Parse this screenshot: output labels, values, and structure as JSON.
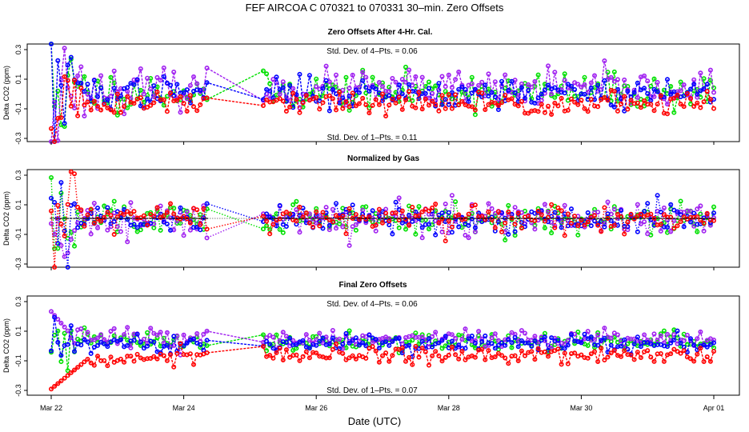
{
  "figure": {
    "title": "FEF   AIRCOA C   070321 to 070331   30–min. Zero Offsets",
    "xlabel": "Date (UTC)"
  },
  "chart_data": [
    {
      "type": "line",
      "title": "Zero Offsets After 4-Hr. Cal.",
      "ylabel": "Delta CO2 (ppm)",
      "ylim": [
        -0.32,
        0.32
      ],
      "yticks": [
        "0.3",
        "0.1",
        "-0.1",
        "-0.3"
      ],
      "stat_top": "Std. Dev. of 4–Pts. =  0.06",
      "stat_bottom": "Std. Dev. of 1–Pts. =  0.11",
      "series": [
        {
          "name": "green",
          "color": "#00e000",
          "mean": 0.005,
          "sd": 0.06,
          "seed": 11
        },
        {
          "name": "purple",
          "color": "#a020f0",
          "mean": 0.025,
          "sd": 0.06,
          "seed": 23
        },
        {
          "name": "blue",
          "color": "#0000ff",
          "mean": 0.0,
          "sd": 0.05,
          "seed": 37
        },
        {
          "name": "red",
          "color": "#ff0000",
          "mean": -0.07,
          "sd": 0.04,
          "seed": 51
        }
      ]
    },
    {
      "type": "line",
      "title": "Normalized by Gas",
      "ylabel": "Delta CO2 (ppm)",
      "ylim": [
        -0.32,
        0.32
      ],
      "yticks": [
        "0.3",
        "0.1",
        "-0.1",
        "-0.3"
      ],
      "series": [
        {
          "name": "green",
          "color": "#00e000",
          "mean": 0.0,
          "sd": 0.06,
          "seed": 61
        },
        {
          "name": "purple",
          "color": "#a020f0",
          "mean": 0.0,
          "sd": 0.06,
          "seed": 73
        },
        {
          "name": "blue",
          "color": "#0000ff",
          "mean": 0.0,
          "sd": 0.05,
          "seed": 89
        },
        {
          "name": "red",
          "color": "#ff0000",
          "mean": 0.0,
          "sd": 0.05,
          "seed": 97
        },
        {
          "name": "black",
          "color": "#000000",
          "mean": 0.0,
          "sd": 0.0,
          "seed": 5
        }
      ]
    },
    {
      "type": "line",
      "title": "Final Zero Offsets",
      "ylabel": "Delta CO2 (ppm)",
      "ylim": [
        -0.32,
        0.32
      ],
      "yticks": [
        "0.3",
        "0.1",
        "-0.1",
        "-0.3"
      ],
      "stat_top": "Std. Dev. of 4–Pts. =  0.06",
      "stat_bottom": "Std. Dev. of 1–Pts. =  0.07",
      "series": [
        {
          "name": "green",
          "color": "#00e000",
          "mean": 0.025,
          "sd": 0.03,
          "seed": 101
        },
        {
          "name": "purple",
          "color": "#a020f0",
          "mean": 0.045,
          "sd": 0.03,
          "seed": 113
        },
        {
          "name": "blue",
          "color": "#0000ff",
          "mean": 0.01,
          "sd": 0.03,
          "seed": 127
        },
        {
          "name": "red",
          "color": "#ff0000",
          "mean": -0.06,
          "sd": 0.03,
          "seed": 131
        }
      ]
    }
  ],
  "x_axis": {
    "start_day": 0,
    "end_day": 10,
    "ticks": [
      {
        "label": "Mar 22",
        "day": 0
      },
      {
        "label": "Mar 24",
        "day": 2
      },
      {
        "label": "Mar 26",
        "day": 4
      },
      {
        "label": "Mar 28",
        "day": 6
      },
      {
        "label": "Mar 30",
        "day": 8
      },
      {
        "label": "Apr 01",
        "day": 10
      }
    ],
    "data_gap_days": [
      2.35,
      3.15
    ]
  }
}
